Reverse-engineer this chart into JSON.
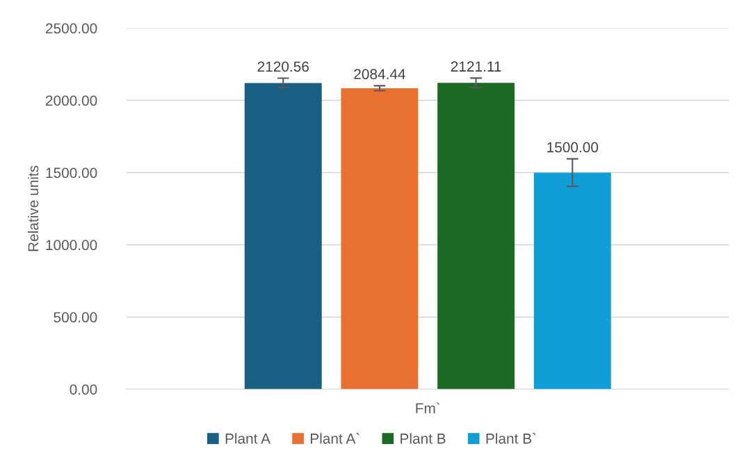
{
  "chart_data": {
    "type": "bar",
    "ylabel": "Relative units",
    "categories": [
      "Fm`"
    ],
    "series": [
      {
        "name": "Plant A",
        "color": "#185f83",
        "values": [
          2120.56
        ],
        "errors": [
          33
        ],
        "value_labels": [
          "2120.56"
        ]
      },
      {
        "name": "Plant A`",
        "color": "#e87132",
        "values": [
          2084.44
        ],
        "errors": [
          17
        ],
        "value_labels": [
          "2084.44"
        ]
      },
      {
        "name": "Plant B",
        "color": "#1b6b24",
        "values": [
          2121.11
        ],
        "errors": [
          33
        ],
        "value_labels": [
          "2121.11"
        ]
      },
      {
        "name": "Plant B`",
        "color": "#109ed6",
        "values": [
          1500.0
        ],
        "errors": [
          95
        ],
        "value_labels": [
          "1500.00"
        ]
      }
    ],
    "ylim": [
      0,
      2500
    ],
    "yticks": [
      {
        "value": 0,
        "label": "0.00"
      },
      {
        "value": 500,
        "label": "500.00"
      },
      {
        "value": 1000,
        "label": "1000.00"
      },
      {
        "value": 1500,
        "label": "1500.00"
      },
      {
        "value": 2000,
        "label": "2000.00"
      },
      {
        "value": 2500,
        "label": "2500.00"
      }
    ],
    "grid": "y",
    "legend": "bottom"
  }
}
